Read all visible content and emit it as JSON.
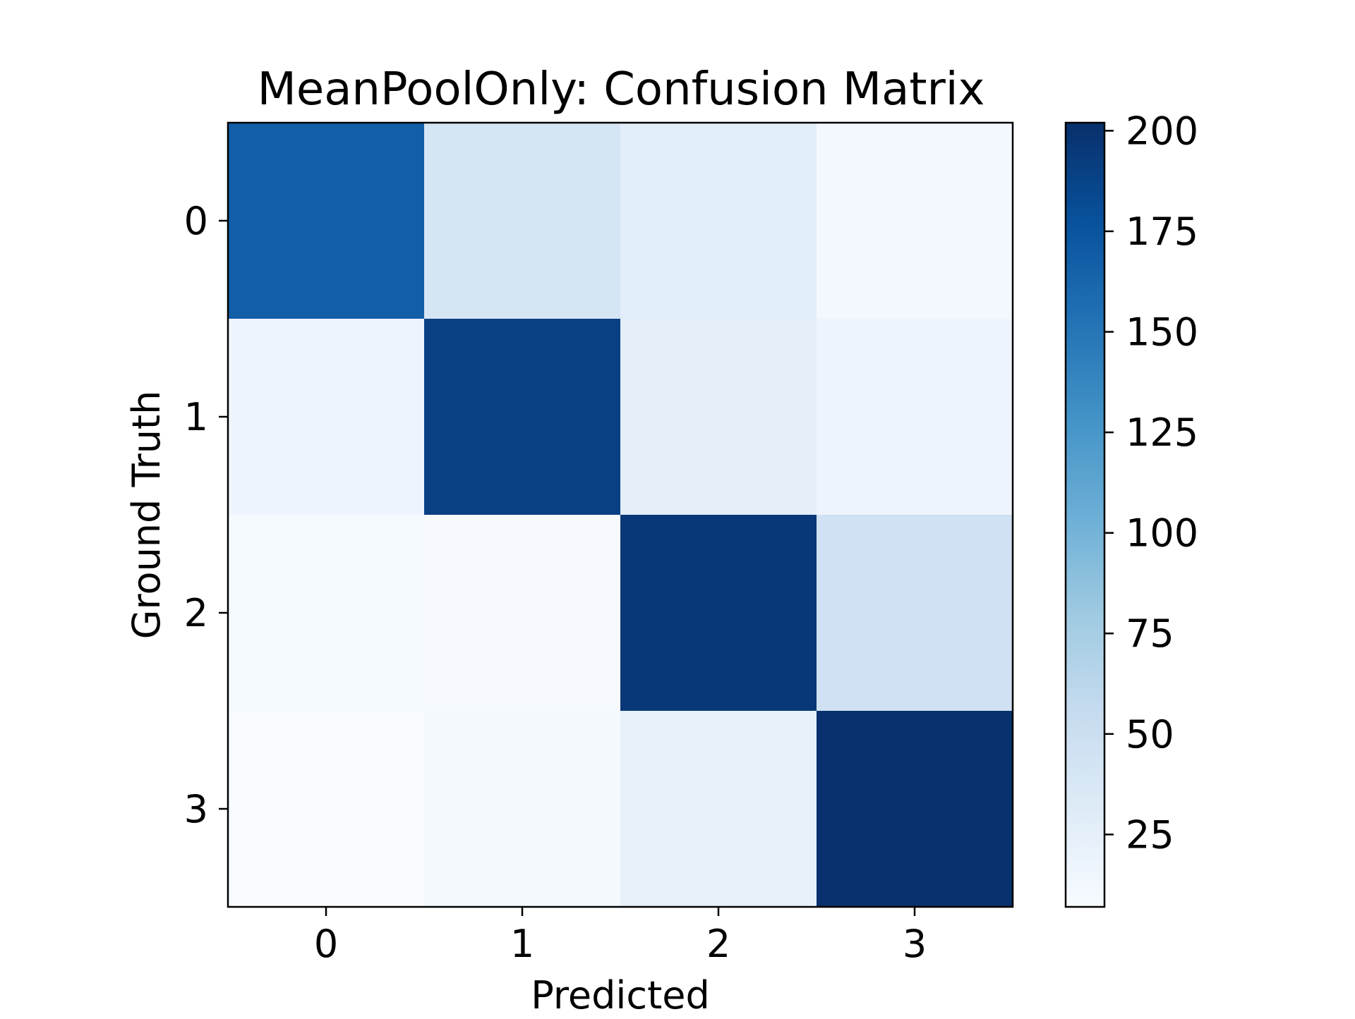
{
  "chart_data": {
    "type": "heatmap",
    "title": "MeanPoolOnly: Confusion Matrix",
    "xlabel": "Predicted",
    "ylabel": "Ground Truth",
    "x_categories": [
      "0",
      "1",
      "2",
      "3"
    ],
    "y_categories": [
      "0",
      "1",
      "2",
      "3"
    ],
    "matrix": [
      [
        167,
        40,
        28,
        12
      ],
      [
        17,
        190,
        25,
        17
      ],
      [
        9,
        8,
        196,
        47
      ],
      [
        7,
        10,
        22,
        201
      ]
    ],
    "colormap": "Blues",
    "color_range": [
      7,
      202
    ],
    "colorbar_ticks": [
      25,
      50,
      75,
      100,
      125,
      150,
      175,
      200
    ]
  }
}
